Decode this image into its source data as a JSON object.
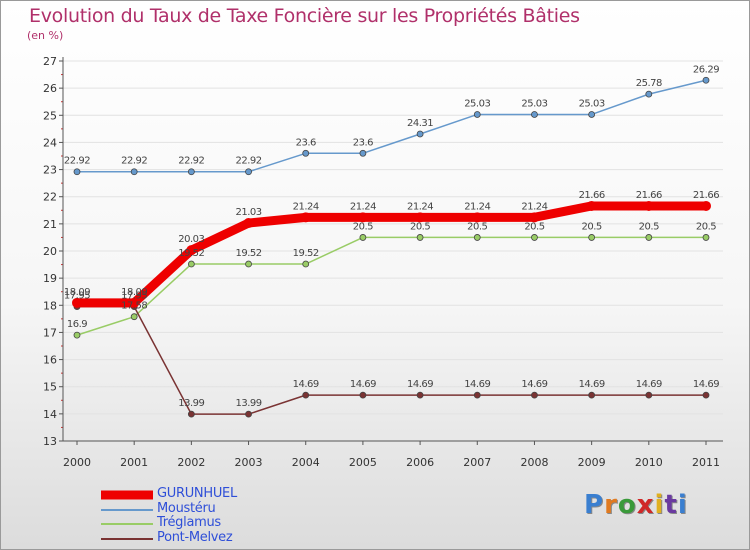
{
  "chart_data": {
    "type": "line",
    "title": "Evolution du Taux de Taxe Foncière sur les Propriétés Bâties",
    "ylabel": "(en %)",
    "xlabel": "",
    "categories": [
      "2000",
      "2001",
      "2002",
      "2003",
      "2004",
      "2005",
      "2006",
      "2007",
      "2008",
      "2009",
      "2010",
      "2011"
    ],
    "ylim": [
      13,
      27
    ],
    "yticks": [
      13,
      14,
      15,
      16,
      17,
      18,
      19,
      20,
      21,
      22,
      23,
      24,
      25,
      26,
      27
    ],
    "grid": "horizontal",
    "series": [
      {
        "name": "GURUNHUEL",
        "color": "#ee0000",
        "width": 9,
        "marker": 5,
        "values": [
          18.09,
          18.09,
          20.03,
          21.03,
          21.24,
          21.24,
          21.24,
          21.24,
          21.24,
          21.66,
          21.66,
          21.66
        ],
        "labels": [
          "18.09",
          "18.09",
          "20.03",
          "21.03",
          "21.24",
          "21.24",
          "21.24",
          "21.24",
          "21.24",
          "21.66",
          "21.66",
          "21.66"
        ]
      },
      {
        "name": "Moustéru",
        "color": "#6699cc",
        "width": 1.5,
        "marker": 3,
        "values": [
          22.92,
          22.92,
          22.92,
          22.92,
          23.6,
          23.6,
          24.31,
          25.03,
          25.03,
          25.03,
          25.78,
          26.29
        ],
        "labels": [
          "22.92",
          "22.92",
          "22.92",
          "22.92",
          "23.6",
          "23.6",
          "24.31",
          "25.03",
          "25.03",
          "25.03",
          "25.78",
          "26.29"
        ]
      },
      {
        "name": "Tréglamus",
        "color": "#99cc66",
        "width": 1.5,
        "marker": 3,
        "values": [
          16.9,
          17.58,
          19.52,
          19.52,
          19.52,
          20.5,
          20.5,
          20.5,
          20.5,
          20.5,
          20.5,
          20.5
        ],
        "labels": [
          "16.9",
          "17.58",
          "19.52",
          "19.52",
          "19.52",
          "20.5",
          "20.5",
          "20.5",
          "20.5",
          "20.5",
          "20.5",
          "20.5"
        ]
      },
      {
        "name": "Pont-Melvez",
        "color": "#7a3333",
        "width": 1.5,
        "marker": 3,
        "values": [
          17.95,
          17.95,
          13.99,
          13.99,
          14.69,
          14.69,
          14.69,
          14.69,
          14.69,
          14.69,
          14.69,
          14.69
        ],
        "labels": [
          "17.95",
          "17.95",
          "13.99",
          "13.99",
          "14.69",
          "14.69",
          "14.69",
          "14.69",
          "14.69",
          "14.69",
          "14.69",
          "14.69"
        ]
      }
    ]
  },
  "logo": {
    "text": "Proxiti",
    "letters": [
      "P",
      "r",
      "o",
      "x",
      "i",
      "t",
      "i"
    ],
    "colors": [
      "#3a7fd0",
      "#e07a20",
      "#3a9a3a",
      "#d02828",
      "#e0b020",
      "#6a3aa0",
      "#3a7fd0"
    ]
  }
}
